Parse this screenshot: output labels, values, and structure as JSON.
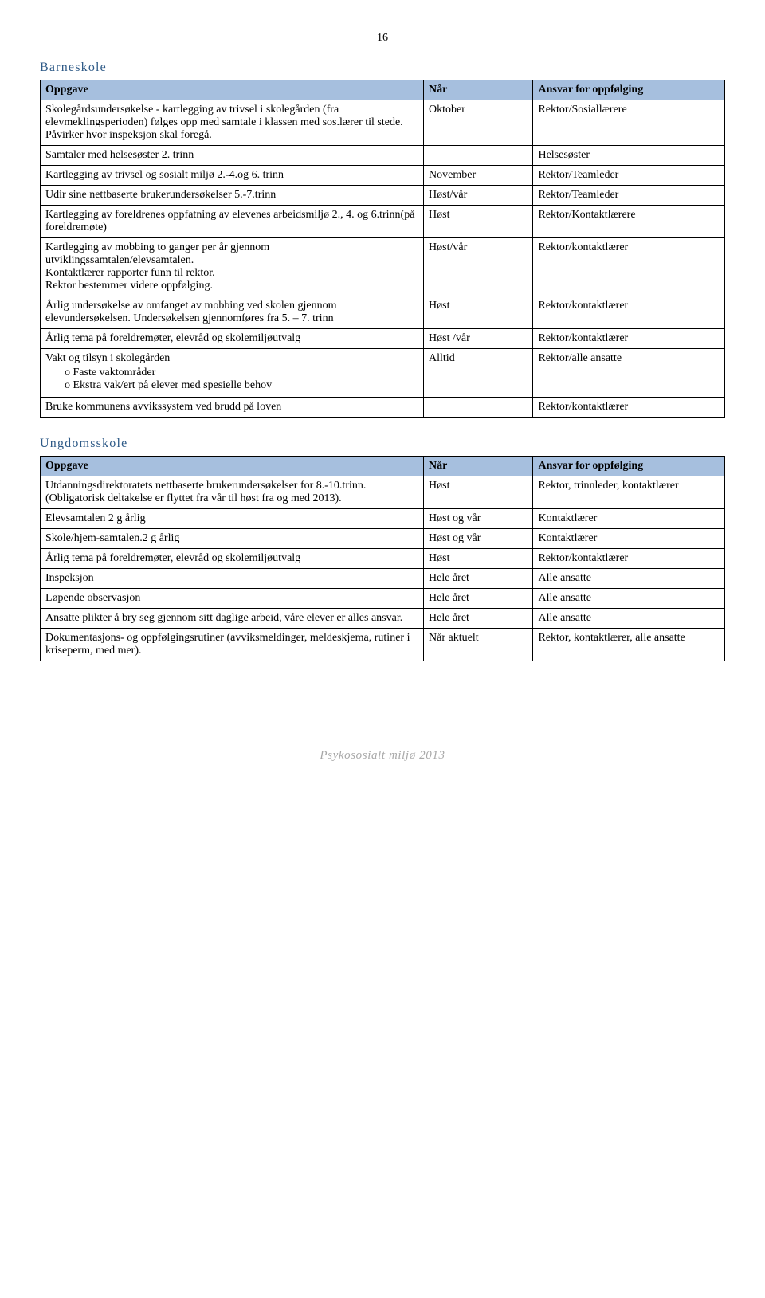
{
  "page_number": "16",
  "section1": {
    "title": "Barneskole",
    "headers": {
      "c1": "Oppgave",
      "c2": "Når",
      "c3": "Ansvar for oppfølging"
    },
    "rows": [
      {
        "c1": "Skolegårdsundersøkelse - kartlegging av trivsel i skolegården (fra elevmeklingsperioden) følges opp med samtale i klassen med sos.lærer til stede. Påvirker hvor inspeksjon skal foregå.",
        "c2": "Oktober",
        "c3": "Rektor/Sosiallærere"
      },
      {
        "c1": "Samtaler med helsesøster 2. trinn",
        "c2": "",
        "c3": "Helsesøster"
      },
      {
        "c1": "Kartlegging av trivsel og sosialt miljø 2.-4.og 6. trinn",
        "c2": "November",
        "c3": "Rektor/Teamleder"
      },
      {
        "c1": "Udir sine nettbaserte brukerundersøkelser 5.-7.trinn",
        "c2": "Høst/vår",
        "c3": "Rektor/Teamleder"
      },
      {
        "c1": "Kartlegging av foreldrenes oppfatning av elevenes arbeidsmiljø 2., 4. og 6.trinn(på foreldremøte)",
        "c2": "Høst",
        "c3": "Rektor/Kontaktlærere"
      },
      {
        "c1": "Kartlegging av mobbing to ganger per år gjennom utviklingssamtalen/elevsamtalen.\nKontaktlærer rapporter funn til rektor.\nRektor bestemmer videre oppfølging.",
        "c2": "Høst/vår",
        "c3": "Rektor/kontaktlærer"
      },
      {
        "c1": "Årlig undersøkelse av omfanget av mobbing ved skolen gjennom elevundersøkelsen. Undersøkelsen gjennomføres fra 5. – 7. trinn",
        "c2": "Høst",
        "c3": "Rektor/kontaktlærer"
      },
      {
        "c1": "Årlig tema på foreldremøter, elevråd og skolemiljøutvalg",
        "c2": "Høst /vår",
        "c3": "Rektor/kontaktlærer"
      },
      {
        "c1_main": "Vakt og tilsyn i skolegården",
        "c1_sub1": "Faste vaktområder",
        "c1_sub2": "Ekstra vak/ert på elever med spesielle behov",
        "c2": "Alltid",
        "c3": "Rektor/alle ansatte"
      },
      {
        "c1": "Bruke kommunens avvikssystem ved brudd på loven",
        "c2": "",
        "c3": "Rektor/kontaktlærer"
      }
    ]
  },
  "section2": {
    "title": "Ungdomsskole",
    "headers": {
      "c1": "Oppgave",
      "c2": "Når",
      "c3": "Ansvar for oppfølging"
    },
    "rows": [
      {
        "c1": "Utdanningsdirektoratets nettbaserte brukerundersøkelser for 8.-10.trinn. (Obligatorisk deltakelse er flyttet fra vår til høst fra og med 2013).",
        "c2": "Høst",
        "c3": "Rektor, trinnleder, kontaktlærer"
      },
      {
        "c1": "Elevsamtalen 2 g årlig",
        "c2": "Høst og vår",
        "c3": "Kontaktlærer"
      },
      {
        "c1": "Skole/hjem-samtalen.2 g årlig",
        "c2": "Høst og vår",
        "c3": "Kontaktlærer"
      },
      {
        "c1": "Årlig tema på foreldremøter, elevråd og skolemiljøutvalg",
        "c2": "Høst",
        "c3": "Rektor/kontaktlærer"
      },
      {
        "c1": "Inspeksjon",
        "c2": "Hele året",
        "c3": "Alle ansatte"
      },
      {
        "c1": "Løpende observasjon",
        "c2": "Hele året",
        "c3": "Alle ansatte"
      },
      {
        "c1": "Ansatte plikter å bry seg gjennom sitt daglige arbeid, våre elever er alles ansvar.",
        "c2": "Hele året",
        "c3": "Alle ansatte"
      },
      {
        "c1": "Dokumentasjons- og oppfølgingsrutiner (avviksmeldinger, meldeskjema, rutiner i kriseperm, med mer).",
        "c2": "Når aktuelt",
        "c3": "Rektor, kontaktlærer, alle ansatte"
      }
    ]
  },
  "footer": "Psykososialt miljø 2013"
}
